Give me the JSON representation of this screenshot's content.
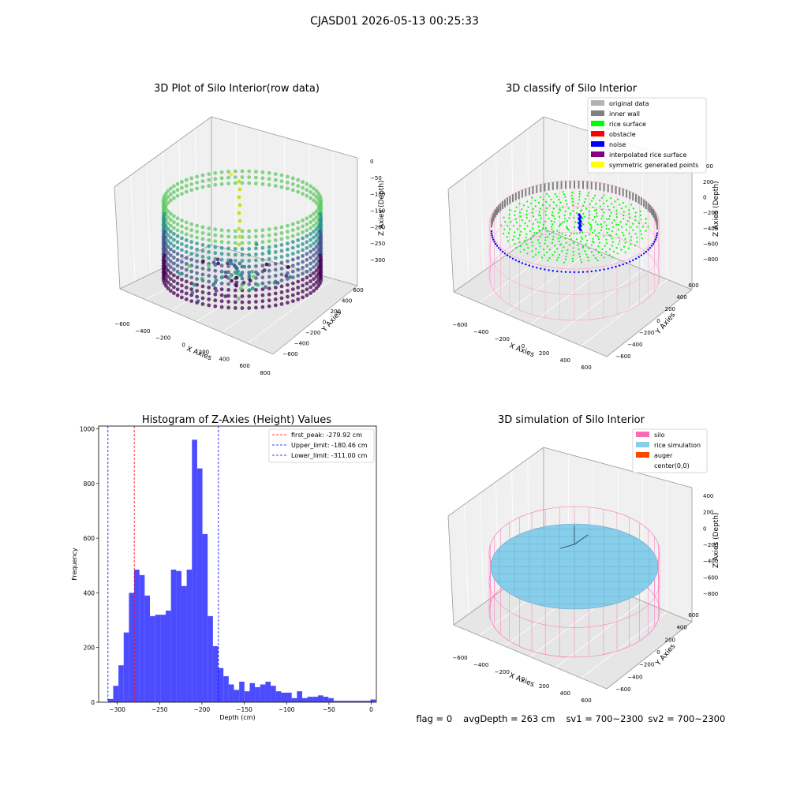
{
  "figure": {
    "suptitle": "CJASD01 2026-05-13 00:25:33"
  },
  "status_line": {
    "flag": "flag = 0",
    "avg_depth": "avgDepth = 263 cm",
    "sv1": "sv1 = 700~2300",
    "sv2": "sv2 = 700~2300"
  },
  "panels": {
    "raw": {
      "title": "3D Plot of Silo Interior(row data)",
      "xlabel": "X Axies",
      "ylabel": "Y Axies",
      "zlabel": "Z Axies (Depth)",
      "xticks": [
        "−600",
        "−400",
        "−200",
        "0",
        "200",
        "400",
        "600",
        "800"
      ],
      "yticks": [
        "−600",
        "−400",
        "−200",
        "0",
        "200",
        "400",
        "600"
      ],
      "zticks": [
        "0",
        "−50",
        "−100",
        "−150",
        "−200",
        "−250",
        "−300"
      ]
    },
    "classify": {
      "title": "3D classify of Silo Interior",
      "xlabel": "X Axies",
      "ylabel": "Y Axies",
      "zlabel": "Z Axies (Depth)",
      "xticks": [
        "−600",
        "−400",
        "−200",
        "0",
        "200",
        "400",
        "600"
      ],
      "yticks": [
        "−600",
        "−400",
        "−200",
        "0",
        "200",
        "400",
        "600"
      ],
      "zticks": [
        "200",
        "0",
        "−200",
        "−400",
        "−600",
        "−800"
      ],
      "legend": [
        {
          "label": "original data",
          "color": "#b3b3b3"
        },
        {
          "label": "inner wall",
          "color": "#808080"
        },
        {
          "label": "rice surface",
          "color": "#00ff00"
        },
        {
          "label": "obstacle",
          "color": "#ff0000"
        },
        {
          "label": "noise",
          "color": "#0000ff"
        },
        {
          "label": "interpolated rice surface",
          "color": "#800080"
        },
        {
          "label": "symmetric generated points",
          "color": "#ffff00"
        }
      ],
      "overflow_tick": "00"
    },
    "simulation": {
      "title": "3D simulation of Silo Interior",
      "xlabel": "X Axies",
      "ylabel": "Y Axies",
      "zlabel": "Z Axies (Depth)",
      "xticks": [
        "−600",
        "−400",
        "−200",
        "0",
        "200",
        "400",
        "600"
      ],
      "yticks": [
        "−600",
        "−400",
        "−200",
        "0",
        "200",
        "400",
        "600"
      ],
      "zticks": [
        "400",
        "200",
        "0",
        "−200",
        "−400",
        "−600",
        "−800"
      ],
      "legend": [
        {
          "label": "silo",
          "color": "#ff69b4"
        },
        {
          "label": "rice simulation",
          "color": "#87ceeb"
        },
        {
          "label": "auger",
          "color": "#ff4500"
        },
        {
          "label": "center(0,0)",
          "color": "#ffffff"
        }
      ]
    }
  },
  "chart_data": [
    {
      "type": "bar",
      "title": "Histogram of Z-Axies (Height) Values",
      "xlabel": "Depth (cm)",
      "ylabel": "Frequency",
      "xlim": [
        -322,
        6
      ],
      "ylim": [
        0,
        1010
      ],
      "xticks": [
        -300,
        -250,
        -200,
        -150,
        -100,
        -50,
        0
      ],
      "yticks": [
        0,
        200,
        400,
        600,
        800,
        1000
      ],
      "bar_color": "#0000ff",
      "bin_width": 6.2,
      "bin_start": -311.0,
      "values": [
        12,
        60,
        135,
        255,
        400,
        485,
        465,
        390,
        315,
        320,
        320,
        335,
        485,
        480,
        425,
        485,
        960,
        855,
        615,
        315,
        205,
        125,
        95,
        65,
        45,
        75,
        40,
        70,
        55,
        65,
        75,
        60,
        40,
        35,
        35,
        15,
        40,
        15,
        20,
        20,
        25,
        20,
        15,
        5,
        5,
        5,
        5,
        5,
        5,
        5,
        10
      ],
      "vlines": [
        {
          "name": "first_peak: -279.92 cm",
          "x": -279.92,
          "color": "#ff0000"
        },
        {
          "name": "Upper_limit: -180.46 cm",
          "x": -180.46,
          "color": "#0000ff"
        },
        {
          "name": "Lower_limit: -311.00 cm",
          "x": -311.0,
          "color": "#0000ff"
        }
      ],
      "legend_position": "upper-right"
    }
  ]
}
